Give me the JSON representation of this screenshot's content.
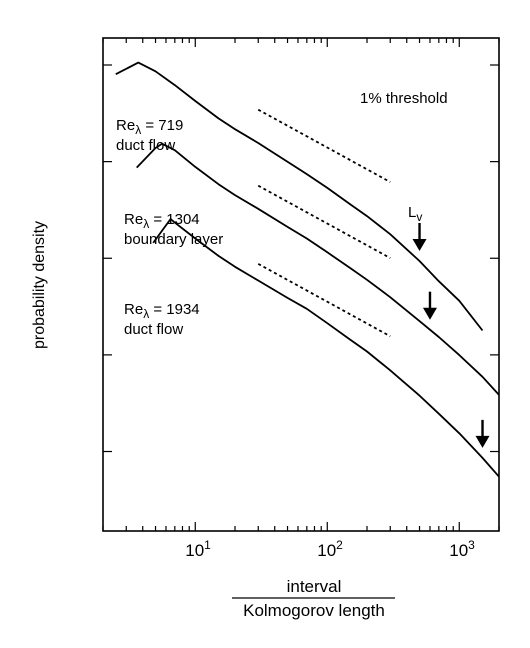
{
  "chart_data": {
    "type": "line",
    "title": "",
    "xlabel_numerator": "interval",
    "xlabel_denominator": "Kolmogorov length",
    "ylabel": "probability density",
    "x_scale": "log",
    "y_scale": "log",
    "xlim": [
      2,
      2000
    ],
    "y_decades": 5,
    "x_tick_labels": [
      {
        "value": 10,
        "base": "10",
        "exp": "1"
      },
      {
        "value": 100,
        "base": "10",
        "exp": "2"
      },
      {
        "value": 1000,
        "base": "10",
        "exp": "3"
      }
    ],
    "annotations": {
      "threshold": "1% threshold",
      "marker_label": "L",
      "marker_label_sub": "v"
    },
    "series": [
      {
        "label_prefix": "Re",
        "label_sub": "λ",
        "label_value": " = 719",
        "label_line2": "duct flow",
        "x": [
          2.5,
          3.7,
          5,
          7,
          10,
          15,
          20,
          30,
          50,
          70,
          100,
          150,
          200,
          300,
          500,
          700,
          1000,
          1500
        ],
        "log_y": [
          4.04,
          4.2,
          4.08,
          3.89,
          3.67,
          3.43,
          3.28,
          3.09,
          2.83,
          2.66,
          2.47,
          2.24,
          2.08,
          1.83,
          1.46,
          1.18,
          0.91,
          0.5
        ],
        "marker_x": 500
      },
      {
        "label_prefix": "Re",
        "label_sub": "λ",
        "label_value": " = 1304",
        "label_line2": "boundary layer",
        "x": [
          3.6,
          5,
          5.6,
          7,
          10,
          15,
          20,
          30,
          50,
          70,
          100,
          150,
          200,
          300,
          500,
          700,
          1000,
          1500,
          2000
        ],
        "log_y": [
          2.75,
          3.02,
          3.08,
          2.99,
          2.76,
          2.52,
          2.37,
          2.18,
          1.93,
          1.77,
          1.58,
          1.36,
          1.2,
          0.96,
          0.63,
          0.41,
          0.16,
          -0.14,
          -0.39
        ],
        "marker_x": 600
      },
      {
        "label_prefix": "Re",
        "label_sub": "λ",
        "label_value": " = 1934",
        "label_line2": "duct flow",
        "x": [
          4.8,
          6.5,
          7,
          10,
          15,
          20,
          30,
          50,
          70,
          100,
          150,
          200,
          300,
          500,
          700,
          1000,
          1500,
          2000
        ],
        "log_y": [
          1.71,
          2.04,
          1.99,
          1.77,
          1.53,
          1.38,
          1.19,
          0.95,
          0.8,
          0.6,
          0.37,
          0.21,
          -0.05,
          -0.4,
          -0.65,
          -0.92,
          -1.26,
          -1.52
        ],
        "marker_x": 1500
      }
    ],
    "reference_lines": [
      {
        "x": [
          30,
          300
        ],
        "log_y": [
          3.55,
          2.55
        ]
      },
      {
        "x": [
          30,
          300
        ],
        "log_y": [
          2.5,
          1.5
        ]
      },
      {
        "x": [
          30,
          300
        ],
        "log_y": [
          1.42,
          0.42
        ]
      }
    ]
  }
}
